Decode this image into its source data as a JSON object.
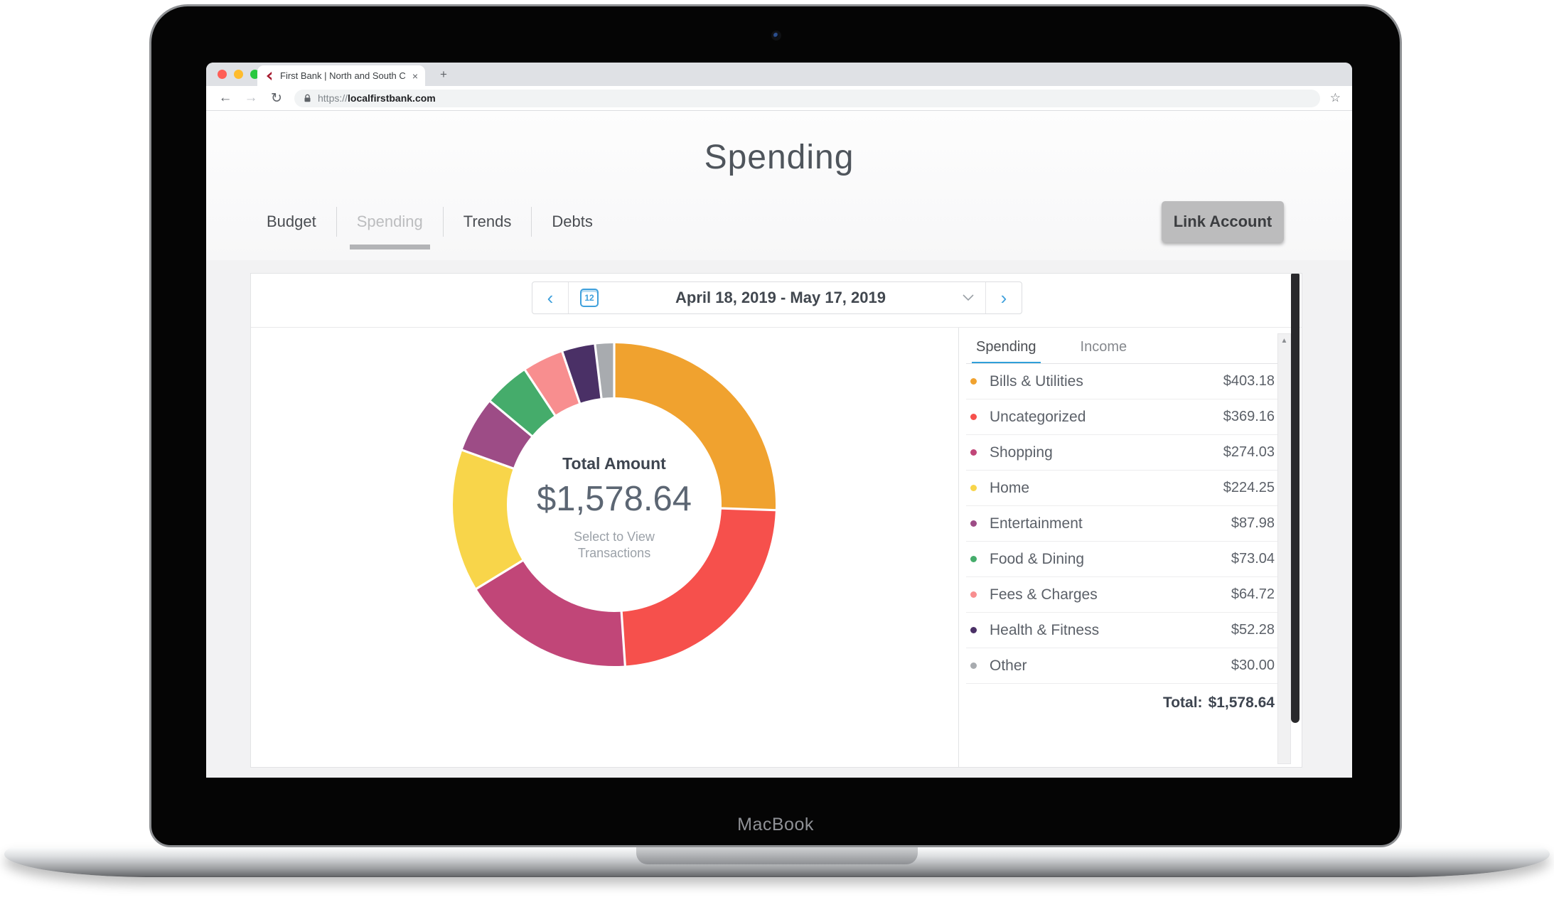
{
  "device": {
    "brand_label": "MacBook"
  },
  "browser": {
    "tab": {
      "title": "First Bank | North and South C",
      "close_label": "×"
    },
    "new_tab_label": "+",
    "nav": {
      "back": "←",
      "forward": "→",
      "reload": "↻",
      "bookmark": "☆"
    },
    "address": {
      "scheme": "https://",
      "domain": "localfirstbank.com"
    }
  },
  "page": {
    "title": "Spending",
    "nav_tabs": [
      {
        "label": "Budget",
        "active": false
      },
      {
        "label": "Spending",
        "active": true
      },
      {
        "label": "Trends",
        "active": false
      },
      {
        "label": "Debts",
        "active": false
      }
    ],
    "link_account_label": "Link Account"
  },
  "date_picker": {
    "prev": "‹",
    "next": "›",
    "calendar_day": "12",
    "range_label": "April 18, 2019 - May 17, 2019"
  },
  "donut_center": {
    "title": "Total Amount",
    "amount": "$1,578.64",
    "hint": "Select to View Transactions"
  },
  "panel": {
    "tabs": [
      {
        "label": "Spending",
        "active": true
      },
      {
        "label": "Income",
        "active": false
      }
    ],
    "total_label": "Total:",
    "total_amount": "$1,578.64",
    "scroll_up_glyph": "▲"
  },
  "chart_data": {
    "type": "pie",
    "variant": "donut",
    "title": "Spending by category, April 18, 2019 - May 17, 2019",
    "total": 1578.64,
    "categories": [
      "Bills & Utilities",
      "Uncategorized",
      "Shopping",
      "Home",
      "Entertainment",
      "Food & Dining",
      "Fees & Charges",
      "Health & Fitness",
      "Other"
    ],
    "values": [
      403.18,
      369.16,
      274.03,
      224.25,
      87.98,
      73.04,
      64.72,
      52.28,
      30.0
    ],
    "amount_labels": [
      "$403.18",
      "$369.16",
      "$274.03",
      "$224.25",
      "$87.98",
      "$73.04",
      "$64.72",
      "$52.28",
      "$30.00"
    ],
    "colors": [
      "#F0A22F",
      "#F6504C",
      "#C14678",
      "#F8D54A",
      "#9D4C86",
      "#45AC6B",
      "#F88E8F",
      "#4A3066",
      "#A8ABAF"
    ],
    "start_angle_deg": 0,
    "direction": "clockwise",
    "inner_radius_ratio": 0.665,
    "legend_position": "right"
  }
}
